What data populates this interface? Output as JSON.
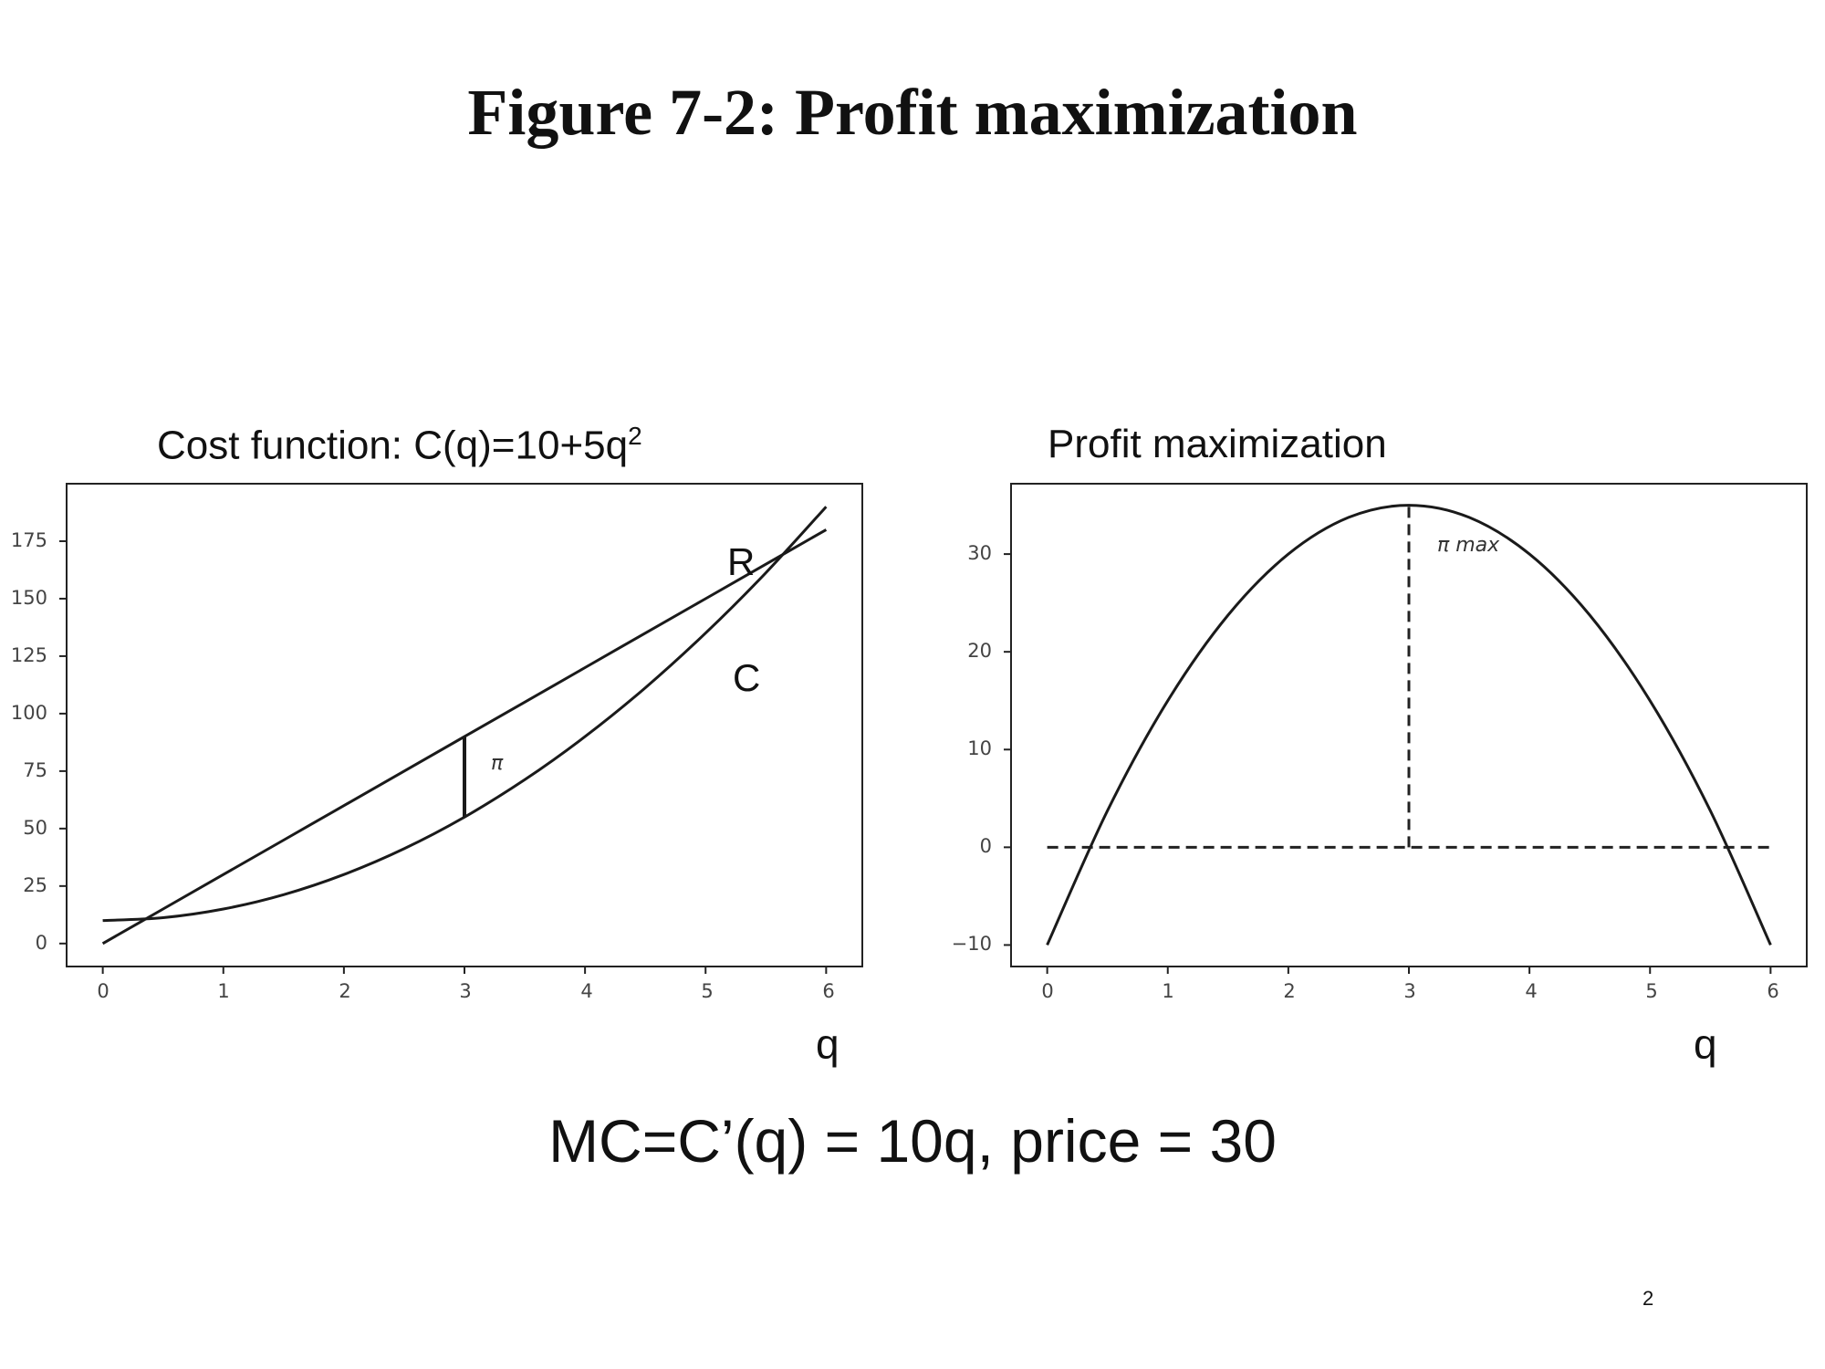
{
  "slide": {
    "title": "Figure 7-2: Profit maximization",
    "formula": "MC=C’(q) = 10q, price = 30",
    "page_number": "2"
  },
  "chart_data": [
    {
      "type": "line",
      "title": "Cost function: C(q)=10+5q",
      "title_superscript": "2",
      "xlabel": "q",
      "ylabel": "",
      "xlim": [
        -0.3,
        6.3
      ],
      "ylim": [
        -10,
        200
      ],
      "xticks": [
        0,
        1,
        2,
        3,
        4,
        5,
        6
      ],
      "yticks": [
        0,
        25,
        50,
        75,
        100,
        125,
        150,
        175
      ],
      "grid": false,
      "x": [
        0,
        0.5,
        1,
        1.5,
        2,
        2.5,
        3,
        3.5,
        4,
        4.5,
        5,
        5.5,
        6
      ],
      "series": [
        {
          "name": "R",
          "color": "#1a1a1a",
          "values": [
            0,
            15,
            30,
            45,
            60,
            75,
            90,
            105,
            120,
            135,
            150,
            165,
            180
          ]
        },
        {
          "name": "C",
          "color": "#1a1a1a",
          "values": [
            10,
            11.25,
            15,
            21.25,
            30,
            41.25,
            55,
            71.25,
            90,
            111.25,
            135,
            161.25,
            190
          ]
        }
      ],
      "annotations": [
        {
          "text": "π",
          "kind": "vertical segment between C and R",
          "x": 3,
          "y_from": 55,
          "y_to": 90
        }
      ],
      "curve_labels": [
        {
          "text": "R",
          "x": 5.25,
          "y": 160
        },
        {
          "text": "C",
          "x": 5.28,
          "y": 110
        }
      ]
    },
    {
      "type": "line",
      "title": "Profit maximization",
      "xlabel": "q",
      "ylabel": "",
      "xlim": [
        -0.3,
        6.3
      ],
      "ylim": [
        -12.2,
        37.2
      ],
      "xticks": [
        0,
        1,
        2,
        3,
        4,
        5,
        6
      ],
      "yticks": [
        -10,
        0,
        10,
        20,
        30
      ],
      "grid": false,
      "x": [
        0,
        0.5,
        1,
        1.5,
        2,
        2.5,
        3,
        3.5,
        4,
        4.5,
        5,
        5.5,
        6
      ],
      "series": [
        {
          "name": "π",
          "color": "#1a1a1a",
          "values": [
            -10,
            3.75,
            15,
            23.75,
            30,
            33.75,
            35,
            33.75,
            30,
            23.75,
            15,
            3.75,
            -10
          ]
        }
      ],
      "reference_lines": [
        {
          "kind": "horizontal dashed",
          "y": 0,
          "x_from": 0,
          "x_to": 6
        },
        {
          "kind": "vertical dashed",
          "x": 3,
          "y_from": 0,
          "y_to": 35
        }
      ],
      "annotations": [
        {
          "text": "π max",
          "x": 3.25,
          "y": 30.5
        }
      ]
    }
  ],
  "ticks": {
    "left_y": [
      "0",
      "25",
      "50",
      "75",
      "100",
      "125",
      "150",
      "175"
    ],
    "left_x": [
      "0",
      "1",
      "2",
      "3",
      "4",
      "5",
      "6"
    ],
    "right_y": [
      "−10",
      "0",
      "10",
      "20",
      "30"
    ],
    "right_x": [
      "0",
      "1",
      "2",
      "3",
      "4",
      "5",
      "6"
    ]
  }
}
